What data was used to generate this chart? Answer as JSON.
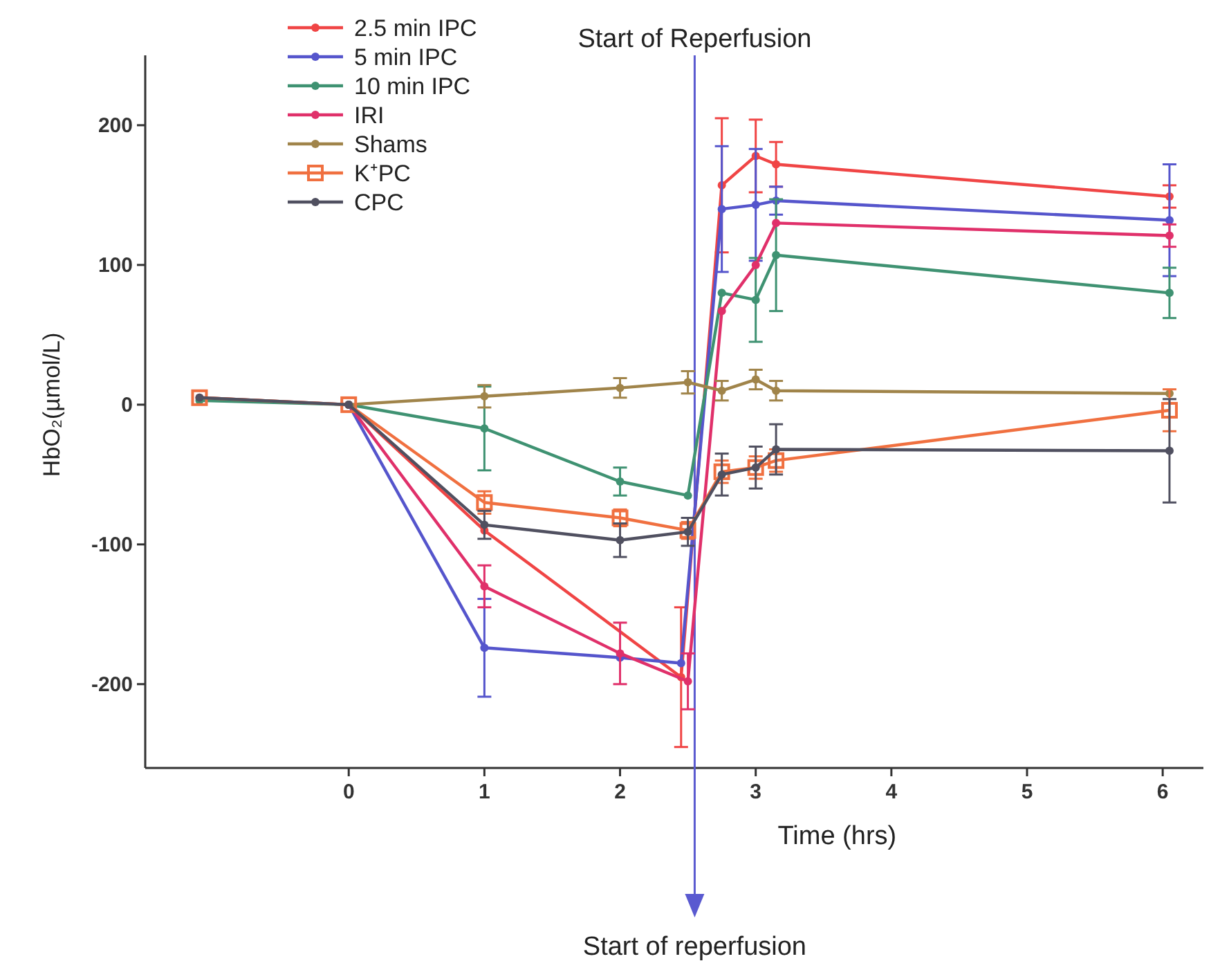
{
  "chart_data": {
    "type": "line",
    "xlabel": "Time (hrs)",
    "ylabel": "HbO₂(µmol/L)",
    "xlim": [
      -1.5,
      6.3
    ],
    "ylim": [
      -260,
      250
    ],
    "xticks": [
      0,
      1,
      2,
      3,
      4,
      5,
      6
    ],
    "yticks": [
      -200,
      -100,
      0,
      100,
      200
    ],
    "grid": false,
    "legend": "top left",
    "ref_lines": [
      {
        "axis": "x",
        "value": 2.55,
        "label": "Start of Reperfusion",
        "color": "#5a5ad0"
      }
    ],
    "annotations": [
      "Start of reperfusion"
    ],
    "series": [
      {
        "name": "2.5 min IPC",
        "color": "#f04545",
        "marker": "circle",
        "x": [
          -1.1,
          0,
          1,
          2.45,
          2.75,
          3.0,
          3.15,
          6.05
        ],
        "values": [
          5,
          0,
          -90,
          -195,
          157,
          178,
          172,
          149
        ],
        "errors": [
          null,
          null,
          null,
          50,
          48,
          26,
          16,
          8
        ]
      },
      {
        "name": "5 min IPC",
        "color": "#5555cc",
        "marker": "circle",
        "x": [
          0,
          1,
          2,
          2.45,
          2.75,
          3.0,
          3.15,
          6.05
        ],
        "values": [
          0,
          -174,
          -181,
          -185,
          140,
          143,
          146,
          132
        ],
        "errors": [
          null,
          35,
          null,
          null,
          45,
          40,
          10,
          40
        ]
      },
      {
        "name": "10 min IPC",
        "color": "#3f9272",
        "marker": "circle",
        "x": [
          -1.1,
          0,
          1,
          2,
          2.5,
          2.75,
          3.0,
          3.15,
          6.05
        ],
        "values": [
          3,
          0,
          -17,
          -55,
          -65,
          80,
          75,
          107,
          80
        ],
        "errors": [
          null,
          null,
          30,
          10,
          null,
          null,
          30,
          40,
          18
        ]
      },
      {
        "name": "IRI",
        "color": "#e0306a",
        "marker": "circle",
        "x": [
          0,
          1,
          2,
          2.5,
          2.75,
          3.0,
          3.15,
          6.05
        ],
        "values": [
          0,
          -130,
          -178,
          -198,
          67,
          100,
          130,
          121
        ],
        "errors": [
          null,
          15,
          22,
          20,
          null,
          null,
          null,
          8
        ]
      },
      {
        "name": "Shams",
        "color": "#a0844a",
        "marker": "circle",
        "x": [
          0,
          1,
          2,
          2.5,
          2.75,
          3.0,
          3.15,
          6.05
        ],
        "values": [
          0,
          6,
          12,
          16,
          10,
          18,
          10,
          8
        ],
        "errors": [
          null,
          8,
          7,
          8,
          7,
          7,
          7,
          null
        ]
      },
      {
        "name": "K⁺PC",
        "color": "#f07040",
        "marker": "square",
        "x": [
          -1.1,
          0,
          1,
          2,
          2.5,
          2.75,
          3.0,
          3.15,
          6.05
        ],
        "values": [
          5,
          0,
          -70,
          -81,
          -90,
          -48,
          -45,
          -40,
          -4
        ],
        "errors": [
          null,
          null,
          8,
          6,
          6,
          8,
          8,
          8,
          15
        ]
      },
      {
        "name": "CPC",
        "color": "#505060",
        "marker": "circle",
        "x": [
          -1.1,
          0,
          1,
          2,
          2.5,
          2.75,
          3.0,
          3.15,
          6.05
        ],
        "values": [
          5,
          0,
          -86,
          -97,
          -91,
          -50,
          -45,
          -32,
          -33
        ],
        "errors": [
          null,
          null,
          10,
          12,
          10,
          15,
          15,
          18,
          37
        ]
      }
    ]
  }
}
